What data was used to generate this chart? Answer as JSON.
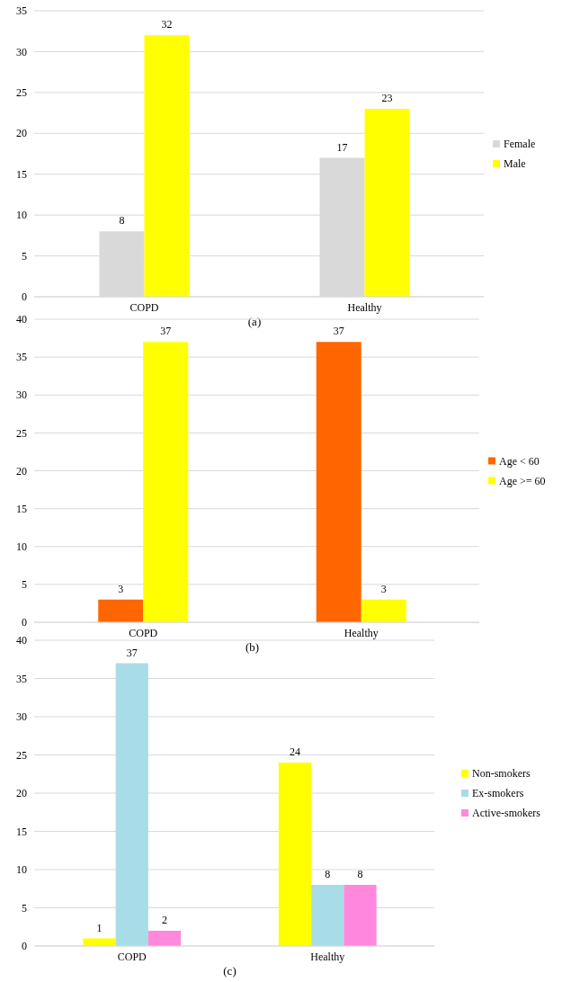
{
  "chart_data": [
    {
      "type": "bar",
      "xlabel": "(a)",
      "categories": [
        "COPD",
        "Healthy"
      ],
      "series": [
        {
          "name": "Female",
          "color": "#d9d9d9",
          "values": [
            8,
            17
          ]
        },
        {
          "name": "Male",
          "color": "#ffff00",
          "values": [
            32,
            23
          ]
        }
      ],
      "ylim": [
        0,
        35
      ],
      "yticks": [
        0,
        5,
        10,
        15,
        20,
        25,
        30,
        35
      ],
      "grid": "y",
      "legend": "right",
      "data_labels": true
    },
    {
      "type": "bar",
      "xlabel": "(b)",
      "categories": [
        "COPD",
        "Healthy"
      ],
      "series": [
        {
          "name": "Age < 60",
          "color": "#ff6600",
          "values": [
            3,
            37
          ]
        },
        {
          "name": "Age >= 60",
          "color": "#ffff00",
          "values": [
            37,
            3
          ]
        }
      ],
      "ylim": [
        0,
        40
      ],
      "yticks": [
        0,
        5,
        10,
        15,
        20,
        25,
        30,
        35,
        40
      ],
      "grid": "y",
      "legend": "right",
      "data_labels": true
    },
    {
      "type": "bar",
      "xlabel": "(c)",
      "categories": [
        "COPD",
        "Healthy"
      ],
      "series": [
        {
          "name": "Non-smokers",
          "color": "#ffff00",
          "values": [
            1,
            24
          ]
        },
        {
          "name": "Ex-smokers",
          "color": "#a8dde8",
          "values": [
            37,
            8
          ]
        },
        {
          "name": "Active-smokers",
          "color": "#ff88dd",
          "values": [
            2,
            8
          ]
        }
      ],
      "ylim": [
        0,
        40
      ],
      "yticks": [
        0,
        5,
        10,
        15,
        20,
        25,
        30,
        35,
        40
      ],
      "grid": "y",
      "legend": "right",
      "data_labels": true
    }
  ]
}
